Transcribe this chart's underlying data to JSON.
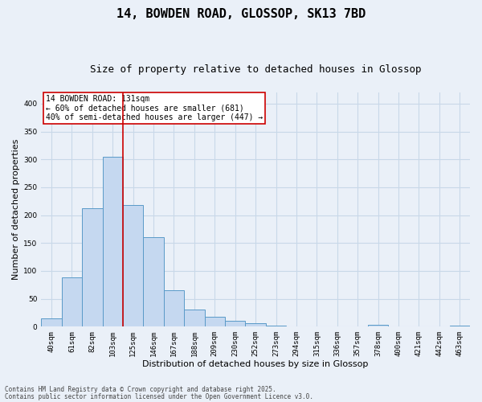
{
  "title": "14, BOWDEN ROAD, GLOSSOP, SK13 7BD",
  "subtitle_text": "Size of property relative to detached houses in Glossop",
  "xlabel": "Distribution of detached houses by size in Glossop",
  "ylabel": "Number of detached properties",
  "categories": [
    "40sqm",
    "61sqm",
    "82sqm",
    "103sqm",
    "125sqm",
    "146sqm",
    "167sqm",
    "188sqm",
    "209sqm",
    "230sqm",
    "252sqm",
    "273sqm",
    "294sqm",
    "315sqm",
    "336sqm",
    "357sqm",
    "378sqm",
    "400sqm",
    "421sqm",
    "442sqm",
    "463sqm"
  ],
  "values": [
    15,
    88,
    213,
    305,
    218,
    160,
    65,
    30,
    17,
    10,
    6,
    2,
    1,
    1,
    0,
    0,
    3,
    0,
    0,
    0,
    2
  ],
  "bar_color": "#c5d8f0",
  "bar_edge_color": "#5a9ac8",
  "grid_color": "#c8d8e8",
  "background_color": "#eaf0f8",
  "marker_line_color": "#cc0000",
  "marker_box_color": "#ffffff",
  "marker_box_edge": "#cc0000",
  "annotation_line1": "14 BOWDEN ROAD: 131sqm",
  "annotation_line2": "← 60% of detached houses are smaller (681)",
  "annotation_line3": "40% of semi-detached houses are larger (447) →",
  "ylim": [
    0,
    420
  ],
  "yticks": [
    0,
    50,
    100,
    150,
    200,
    250,
    300,
    350,
    400
  ],
  "marker_bar_index": 4,
  "footer_line1": "Contains HM Land Registry data © Crown copyright and database right 2025.",
  "footer_line2": "Contains public sector information licensed under the Open Government Licence v3.0.",
  "title_fontsize": 11,
  "subtitle_fontsize": 9,
  "axis_label_fontsize": 8,
  "tick_fontsize": 6.5,
  "annotation_fontsize": 7,
  "footer_fontsize": 5.5
}
